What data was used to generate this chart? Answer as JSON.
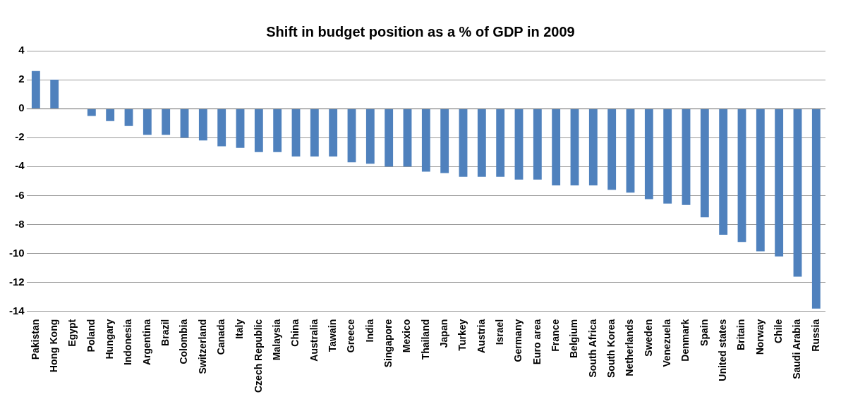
{
  "chart_data": {
    "type": "bar",
    "title": "Shift in budget position as a % of GDP in 2009",
    "categories": [
      "Pakistan",
      "Hong Kong",
      "Egypt",
      "Poland",
      "Hungary",
      "Indonesia",
      "Argentina",
      "Brazil",
      "Colombia",
      "Switzerland",
      "Canada",
      "Italy",
      "Czech Republic",
      "Malaysia",
      "China",
      "Australia",
      "Tawain",
      "Greece",
      "India",
      "Singapore",
      "Mexico",
      "Thailand",
      "Japan",
      "Turkey",
      "Austria",
      "Israel",
      "Germany",
      "Euro area",
      "France",
      "Belgium",
      "South Africa",
      "South Korea",
      "Netherlands",
      "Sweden",
      "Venezuela",
      "Denmark",
      "Spain",
      "United states",
      "Britain",
      "Norway",
      "Chile",
      "Saudi Arabia",
      "Russia"
    ],
    "values": [
      2.6,
      2.0,
      0,
      -0.5,
      -0.85,
      -1.2,
      -1.8,
      -1.8,
      -2.0,
      -2.2,
      -2.6,
      -2.7,
      -3.0,
      -3.0,
      -3.3,
      -3.3,
      -3.3,
      -3.7,
      -3.8,
      -4.0,
      -4.0,
      -4.35,
      -4.45,
      -4.7,
      -4.7,
      -4.7,
      -4.9,
      -4.9,
      -5.3,
      -5.3,
      -5.3,
      -5.6,
      -5.8,
      -6.25,
      -6.55,
      -6.65,
      -7.5,
      -8.7,
      -9.2,
      -9.85,
      -10.2,
      -11.6,
      -13.8
    ],
    "color": "#4f81bd",
    "ylim": [
      -14,
      4
    ],
    "yticks": [
      -14,
      -12,
      -10,
      -8,
      -6,
      -4,
      -2,
      0,
      2,
      4
    ],
    "grid": "y"
  }
}
